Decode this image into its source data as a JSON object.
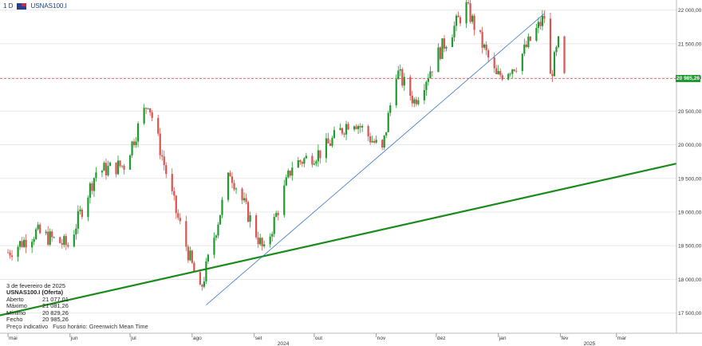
{
  "header": {
    "timeframe": "1 D",
    "symbol": "USNAS100.I",
    "flag_icon": "us-flag-icon"
  },
  "colors": {
    "bull": "#1e9a2e",
    "bear": "#d9534f",
    "trendline_major": "#1a8a1a",
    "trendline_minor": "#3a78c8",
    "current_price_line": "#d9534f",
    "grid": "#e8e8e8"
  },
  "chart_data": {
    "type": "candlestick",
    "y_axis": {
      "min": 17200,
      "max": 22150,
      "ticks": [
        "22 000,00",
        "21 500,00",
        "21 000,00",
        "20 500,00",
        "20 000,00",
        "19 500,00",
        "19 000,00",
        "18 500,00",
        "18 000,00",
        "17 500,00"
      ],
      "tick_values": [
        22000,
        21500,
        21000,
        20500,
        20000,
        19500,
        19000,
        18500,
        18000,
        17500
      ]
    },
    "x_axis": {
      "months": [
        {
          "label": "mai",
          "date": "2024-05-01"
        },
        {
          "label": "jun",
          "date": "2024-06-01"
        },
        {
          "label": "jul",
          "date": "2024-07-01"
        },
        {
          "label": "ago",
          "date": "2024-08-01"
        },
        {
          "label": "set",
          "date": "2024-09-01"
        },
        {
          "label": "out",
          "date": "2024-10-01"
        },
        {
          "label": "nov",
          "date": "2024-11-01"
        },
        {
          "label": "dez",
          "date": "2024-12-01"
        },
        {
          "label": "jan",
          "date": "2025-01-01"
        },
        {
          "label": "fev",
          "date": "2025-02-01"
        },
        {
          "label": "mar",
          "date": "2025-03-01"
        }
      ],
      "years": [
        {
          "label": "2024",
          "date": "2024-09-15"
        },
        {
          "label": "2025",
          "date": "2025-02-15"
        }
      ]
    },
    "current_price": {
      "value": 20985.26,
      "label": "20 985,26"
    },
    "series_close": [
      {
        "date": "2024-05-01",
        "v": 18400
      },
      {
        "date": "2024-05-15",
        "v": 18700
      },
      {
        "date": "2024-05-31",
        "v": 18500
      },
      {
        "date": "2024-06-14",
        "v": 19600
      },
      {
        "date": "2024-06-28",
        "v": 19700
      },
      {
        "date": "2024-07-10",
        "v": 20650
      },
      {
        "date": "2024-07-24",
        "v": 19000
      },
      {
        "date": "2024-08-05",
        "v": 17800
      },
      {
        "date": "2024-08-20",
        "v": 19600
      },
      {
        "date": "2024-09-06",
        "v": 18400
      },
      {
        "date": "2024-09-20",
        "v": 19700
      },
      {
        "date": "2024-10-05",
        "v": 19900
      },
      {
        "date": "2024-10-20",
        "v": 20400
      },
      {
        "date": "2024-11-04",
        "v": 19900
      },
      {
        "date": "2024-11-11",
        "v": 21100
      },
      {
        "date": "2024-11-20",
        "v": 20650
      },
      {
        "date": "2024-12-02",
        "v": 21350
      },
      {
        "date": "2024-12-16",
        "v": 22050
      },
      {
        "date": "2024-12-31",
        "v": 21000
      },
      {
        "date": "2025-01-10",
        "v": 21200
      },
      {
        "date": "2025-01-20",
        "v": 21700
      },
      {
        "date": "2025-01-24",
        "v": 21900
      },
      {
        "date": "2025-01-27",
        "v": 21000
      },
      {
        "date": "2025-01-31",
        "v": 21500
      },
      {
        "date": "2025-02-03",
        "v": 20985
      }
    ],
    "trendlines": [
      {
        "name": "",
        "from": {
          "date": "2024-04-20",
          "v": 17420
        },
        "to": {
          "date": "2025-03-31",
          "v": 19720
        },
        "style": "green-thick"
      },
      {
        "name": "",
        "from": {
          "date": "2024-08-08",
          "v": 17620
        },
        "to": {
          "date": "2025-01-24",
          "v": 21950
        },
        "style": "blue-thin"
      }
    ]
  },
  "tooltip": {
    "date": "3 de fevereiro de 2025",
    "title": "USNAS100.I (Oferta)",
    "rows": [
      {
        "label": "Aberto",
        "value": "21 077,01"
      },
      {
        "label": "Máximo",
        "value": "21 081,26"
      },
      {
        "label": "Mínimo",
        "value": "20 829,26"
      },
      {
        "label": "Fecho",
        "value": "20 985,26"
      }
    ],
    "footer": [
      "Preço indicativo",
      "Fuso horário: Greenwich Mean Time"
    ]
  }
}
